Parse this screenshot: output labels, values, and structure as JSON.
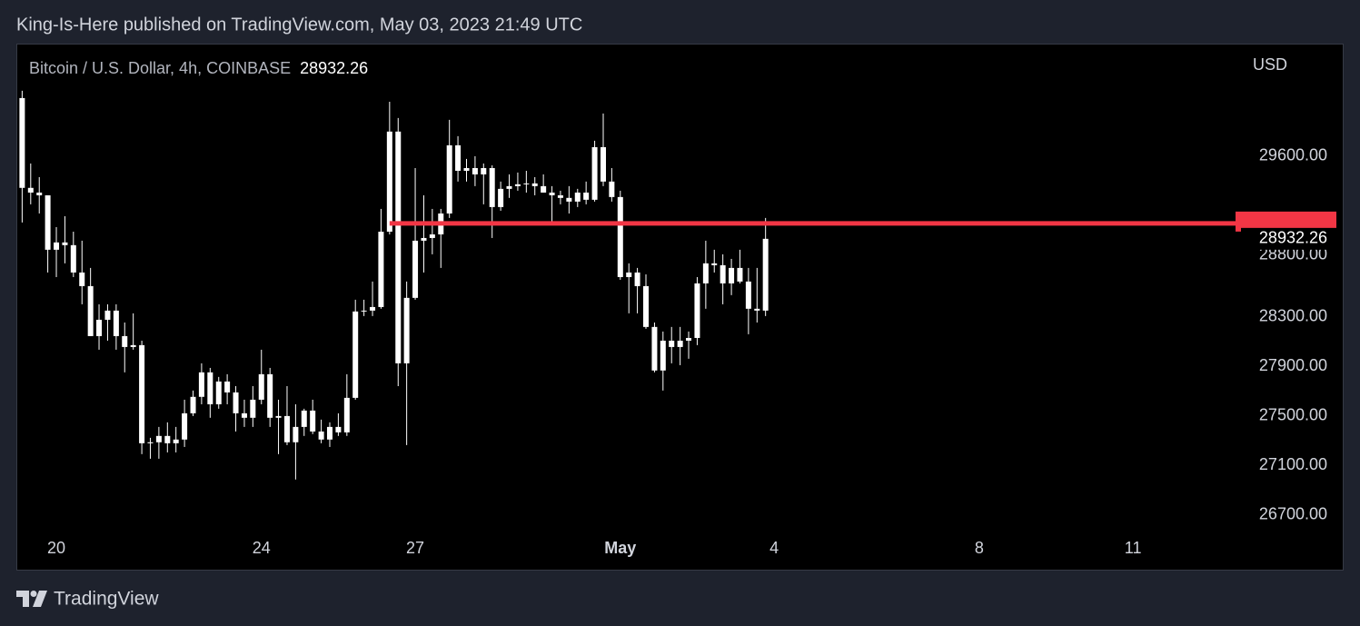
{
  "header": {
    "published": "King-Is-Here published on TradingView.com, May 03, 2023 21:49 UTC"
  },
  "footer": {
    "brand": "TradingView"
  },
  "chart_data": {
    "type": "candlestick",
    "title": "Bitcoin / U.S. Dollar, 4h, COINBASE",
    "currency": "USD",
    "color": "#ffffff",
    "x": [
      19.333,
      19.5,
      19.667,
      19.833,
      20,
      20.167,
      20.333,
      20.5,
      20.667,
      20.833,
      21,
      21.167,
      21.333,
      21.5,
      21.667,
      21.833,
      22,
      22.167,
      22.333,
      22.5,
      22.667,
      22.833,
      23,
      23.167,
      23.333,
      23.5,
      23.667,
      23.833,
      24,
      24.167,
      24.333,
      24.5,
      24.667,
      24.833,
      25,
      25.167,
      25.333,
      25.5,
      25.667,
      25.833,
      26,
      26.167,
      26.333,
      26.5,
      26.667,
      26.833,
      27,
      27.167,
      27.333,
      27.5,
      27.667,
      27.833,
      28,
      28.167,
      28.333,
      28.5,
      28.667,
      28.833,
      29,
      29.167,
      29.333,
      29.5,
      29.667,
      29.833,
      30,
      30.167,
      30.333,
      30.5,
      30.667,
      30.833,
      31,
      31.167,
      31.333,
      31.5,
      31.667,
      31.833,
      32,
      32.167,
      32.333,
      32.5,
      32.667,
      32.833,
      33,
      33.167,
      33.333,
      33.5,
      33.667,
      33.833
    ],
    "open": [
      30070,
      29344,
      29306,
      29284,
      28844,
      28903,
      28881,
      28660,
      28550,
      28146,
      28278,
      28352,
      28146,
      28058,
      28073,
      27280,
      27288,
      27339,
      27280,
      27310,
      27522,
      27655,
      27853,
      27595,
      27779,
      27691,
      27522,
      27486,
      27632,
      27838,
      27486,
      27500,
      27288,
      27412,
      27544,
      27375,
      27310,
      27412,
      27368,
      27647,
      28345,
      28352,
      28381,
      28990,
      29799,
      27926,
      28455,
      28917,
      28939,
      28968,
      29137,
      29688,
      29482,
      29504,
      29453,
      29504,
      29189,
      29336,
      29358,
      29373,
      29380,
      29358,
      29306,
      29284,
      29263,
      29233,
      29306,
      29248,
      29673,
      29395,
      29270,
      28623,
      28660,
      28550,
      28220,
      27868,
      28109,
      28058,
      28109,
      28131,
      28572,
      28734,
      28719,
      28572,
      28697,
      28587,
      28367,
      28352
    ],
    "high": [
      30129,
      29541,
      29431,
      29284,
      29027,
      29115,
      28990,
      28917,
      28697,
      28403,
      28403,
      28403,
      28256,
      28330,
      28109,
      27324,
      27412,
      27449,
      27412,
      27632,
      27706,
      27926,
      27889,
      27816,
      27838,
      27742,
      27632,
      27742,
      28036,
      27889,
      27632,
      27742,
      27595,
      27559,
      27632,
      27471,
      27449,
      27522,
      27838,
      28440,
      28440,
      28587,
      29174,
      30040,
      29909,
      28587,
      29504,
      29284,
      29174,
      29174,
      29894,
      29762,
      29578,
      29600,
      29541,
      29526,
      29395,
      29453,
      29468,
      29482,
      29431,
      29453,
      29358,
      29321,
      29358,
      29336,
      29395,
      29725,
      29945,
      29504,
      29321,
      28734,
      28697,
      28645,
      28256,
      28183,
      28220,
      28220,
      28183,
      28623,
      28917,
      28844,
      28807,
      28770,
      28844,
      28697,
      28697,
      29101
    ],
    "low": [
      29064,
      29211,
      29137,
      28660,
      28623,
      28734,
      28623,
      28403,
      28146,
      28036,
      28109,
      28036,
      27853,
      28036,
      27192,
      27155,
      27155,
      27206,
      27206,
      27250,
      27500,
      27595,
      27486,
      27559,
      27595,
      27375,
      27412,
      27412,
      27595,
      27412,
      27192,
      27265,
      26987,
      27339,
      27354,
      27280,
      27250,
      27339,
      27339,
      27632,
      28308,
      28308,
      28367,
      28968,
      27742,
      27265,
      28440,
      28660,
      28807,
      28697,
      29101,
      29395,
      29395,
      29358,
      29211,
      28939,
      29159,
      29263,
      29321,
      29306,
      29284,
      29306,
      29064,
      29211,
      29137,
      29189,
      29211,
      29233,
      29358,
      29233,
      28601,
      28330,
      28330,
      28205,
      27853,
      27706,
      27926,
      27911,
      27963,
      28073,
      28367,
      28660,
      28403,
      28477,
      28572,
      28161,
      28256,
      28308
    ],
    "close": [
      29344,
      29306,
      29284,
      28844,
      28903,
      28881,
      28660,
      28550,
      28146,
      28278,
      28352,
      28146,
      28058,
      28073,
      27280,
      27288,
      27339,
      27280,
      27310,
      27522,
      27655,
      27853,
      27595,
      27779,
      27691,
      27522,
      27486,
      27632,
      27838,
      27486,
      27500,
      27288,
      27412,
      27544,
      27375,
      27310,
      27412,
      27368,
      27647,
      28345,
      28352,
      28381,
      28990,
      29799,
      27926,
      28455,
      28917,
      28939,
      28968,
      29137,
      29688,
      29482,
      29504,
      29453,
      29504,
      29189,
      29336,
      29358,
      29373,
      29380,
      29358,
      29306,
      29284,
      29263,
      29233,
      29306,
      29248,
      29673,
      29395,
      29270,
      28623,
      28660,
      28550,
      28220,
      27868,
      28109,
      28058,
      28109,
      28131,
      28572,
      28734,
      28719,
      28572,
      28697,
      28587,
      28367,
      28352,
      28932.26
    ],
    "hline": {
      "value": 29057,
      "start": 26.5,
      "color": "#f23645"
    },
    "xlim": [
      19.22,
      43
    ],
    "xticks": [
      20,
      24,
      27,
      {
        "value": 31,
        "label": "May"
      },
      {
        "value": 34,
        "label": "4"
      },
      {
        "value": 38,
        "label": "8"
      },
      {
        "value": 41,
        "label": "11"
      }
    ],
    "ylim": [
      26530,
      30510
    ],
    "yticks": [
      {
        "value": 29600,
        "label": "29600.00"
      },
      {
        "value": 28800,
        "label": "28800.00"
      },
      {
        "value": 28300,
        "label": "28300.00"
      },
      {
        "value": 27900,
        "label": "27900.00"
      },
      {
        "value": 27500,
        "label": "27500.00"
      },
      {
        "value": 27100,
        "label": "27100.00"
      },
      {
        "value": 26700,
        "label": "26700.00"
      }
    ],
    "grid": false
  }
}
